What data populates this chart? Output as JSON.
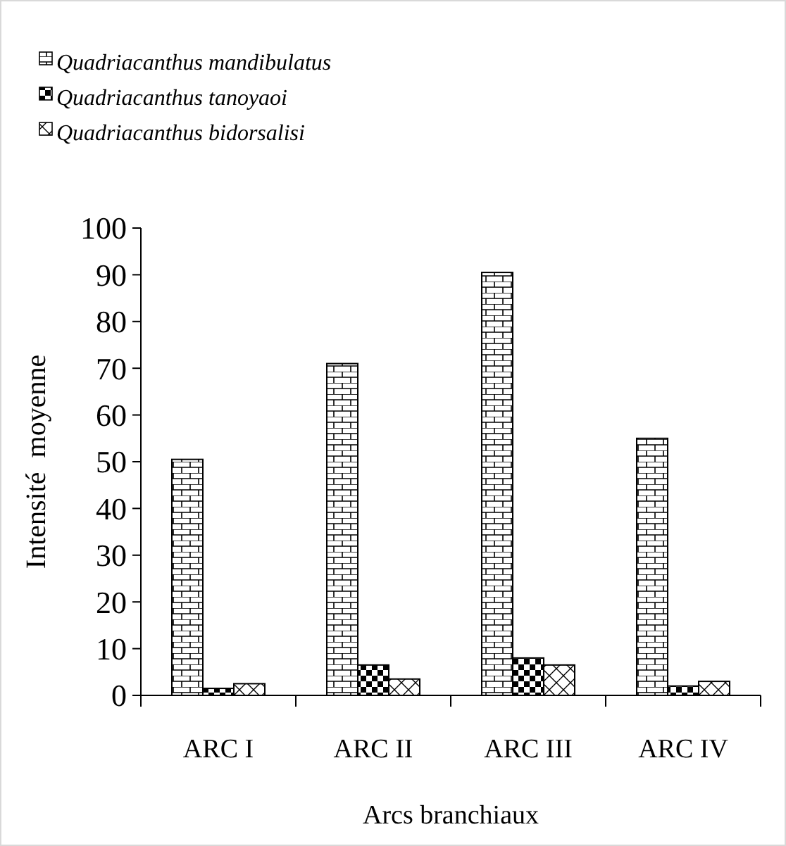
{
  "chart_data": {
    "type": "bar",
    "categories": [
      "ARC I",
      "ARC II",
      "ARC III",
      "ARC IV"
    ],
    "series": [
      {
        "name": "Quadriacanthus mandibulatus",
        "color": "#000000",
        "values": [
          50.5,
          71,
          90.5,
          55
        ]
      },
      {
        "name": "Quadriacanthus tanoyaoi",
        "color": "#000000",
        "values": [
          1.5,
          6.5,
          8,
          2
        ]
      },
      {
        "name": "Quadriacanthus bidorsalisi",
        "color": "#000000",
        "values": [
          2.5,
          3.5,
          6.5,
          3
        ]
      }
    ],
    "xlabel": "Arcs branchiaux",
    "ylabel": "Intensité  moyenne",
    "ylim": [
      0,
      100
    ],
    "yticks": [
      0,
      10,
      20,
      30,
      40,
      50,
      60,
      70,
      80,
      90,
      100
    ],
    "grid": false,
    "legend": "top left"
  }
}
